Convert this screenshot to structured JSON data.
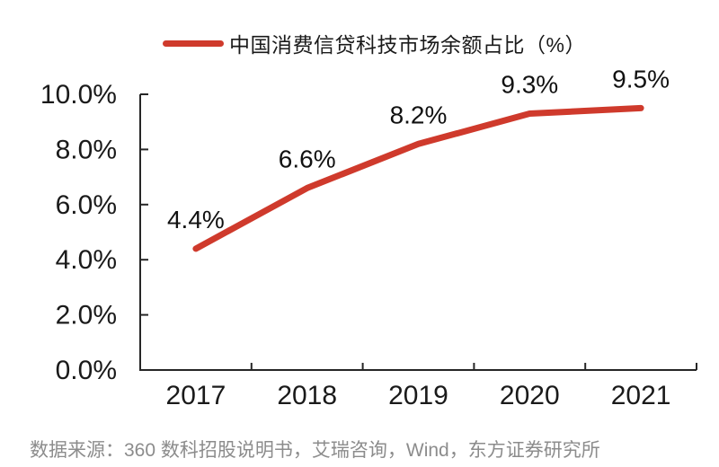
{
  "chart_data": {
    "type": "line",
    "title": "中国消费信贷科技市场余额占比（%）",
    "categories": [
      "2017",
      "2018",
      "2019",
      "2020",
      "2021"
    ],
    "values": [
      4.4,
      6.6,
      8.2,
      9.3,
      9.5
    ],
    "data_labels": [
      "4.4%",
      "6.6%",
      "8.2%",
      "9.3%",
      "9.5%"
    ],
    "xlabel": "",
    "ylabel": "",
    "ylim": [
      0,
      10
    ],
    "yticks": [
      0,
      2,
      4,
      6,
      8,
      10
    ],
    "ytick_labels": [
      "0.0%",
      "2.0%",
      "4.0%",
      "6.0%",
      "8.0%",
      "10.0%"
    ],
    "grid": false,
    "legend_position": "top-center",
    "line_color": "#cf3a2c",
    "axis_color": "#262626",
    "text_color": "#1a1a1a"
  },
  "footer": {
    "source": "数据来源：360 数科招股说明书，艾瑞咨询，Wind，东方证券研究所"
  }
}
